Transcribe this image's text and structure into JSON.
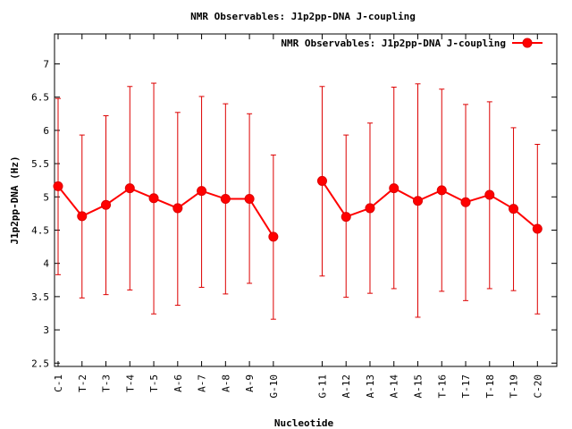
{
  "chart_data": {
    "type": "line",
    "title": "NMR Observables: J1p2pp-DNA J-coupling",
    "xlabel": "Nucleotide",
    "ylabel": "J1p2pp-DNA (Hz)",
    "ylim": [
      2.45,
      7.45
    ],
    "yticks": [
      "2.5",
      "3",
      "3.5",
      "4",
      "4.5",
      "5",
      "5.5",
      "6",
      "6.5",
      "7"
    ],
    "grid": false,
    "legend_position": "top-right",
    "categories": [
      "C-1",
      "T-2",
      "T-3",
      "T-4",
      "T-5",
      "A-6",
      "A-7",
      "A-8",
      "A-9",
      "G-10",
      "G-11",
      "A-12",
      "A-13",
      "A-14",
      "A-15",
      "T-16",
      "T-17",
      "T-18",
      "T-19",
      "C-20"
    ],
    "series": [
      {
        "name": "NMR Observables: J1p2pp-DNA J-coupling",
        "color": "#ff0000",
        "values": [
          5.16,
          4.71,
          4.88,
          5.13,
          4.98,
          4.83,
          5.09,
          4.97,
          4.97,
          4.4,
          5.24,
          4.7,
          4.83,
          5.13,
          4.94,
          5.1,
          4.92,
          5.03,
          4.82,
          4.52
        ],
        "err_low": [
          3.83,
          3.48,
          3.53,
          3.6,
          3.24,
          3.37,
          3.64,
          3.54,
          3.7,
          3.16,
          3.81,
          3.49,
          3.55,
          3.62,
          3.19,
          3.58,
          3.44,
          3.62,
          3.59,
          3.24
        ],
        "err_high": [
          6.48,
          5.93,
          6.22,
          6.66,
          6.71,
          6.27,
          6.51,
          6.4,
          6.25,
          5.63,
          6.66,
          5.93,
          6.11,
          6.65,
          6.7,
          6.62,
          6.39,
          6.43,
          6.04,
          5.79
        ],
        "segments": [
          [
            0,
            9
          ],
          [
            10,
            19
          ]
        ]
      }
    ]
  }
}
